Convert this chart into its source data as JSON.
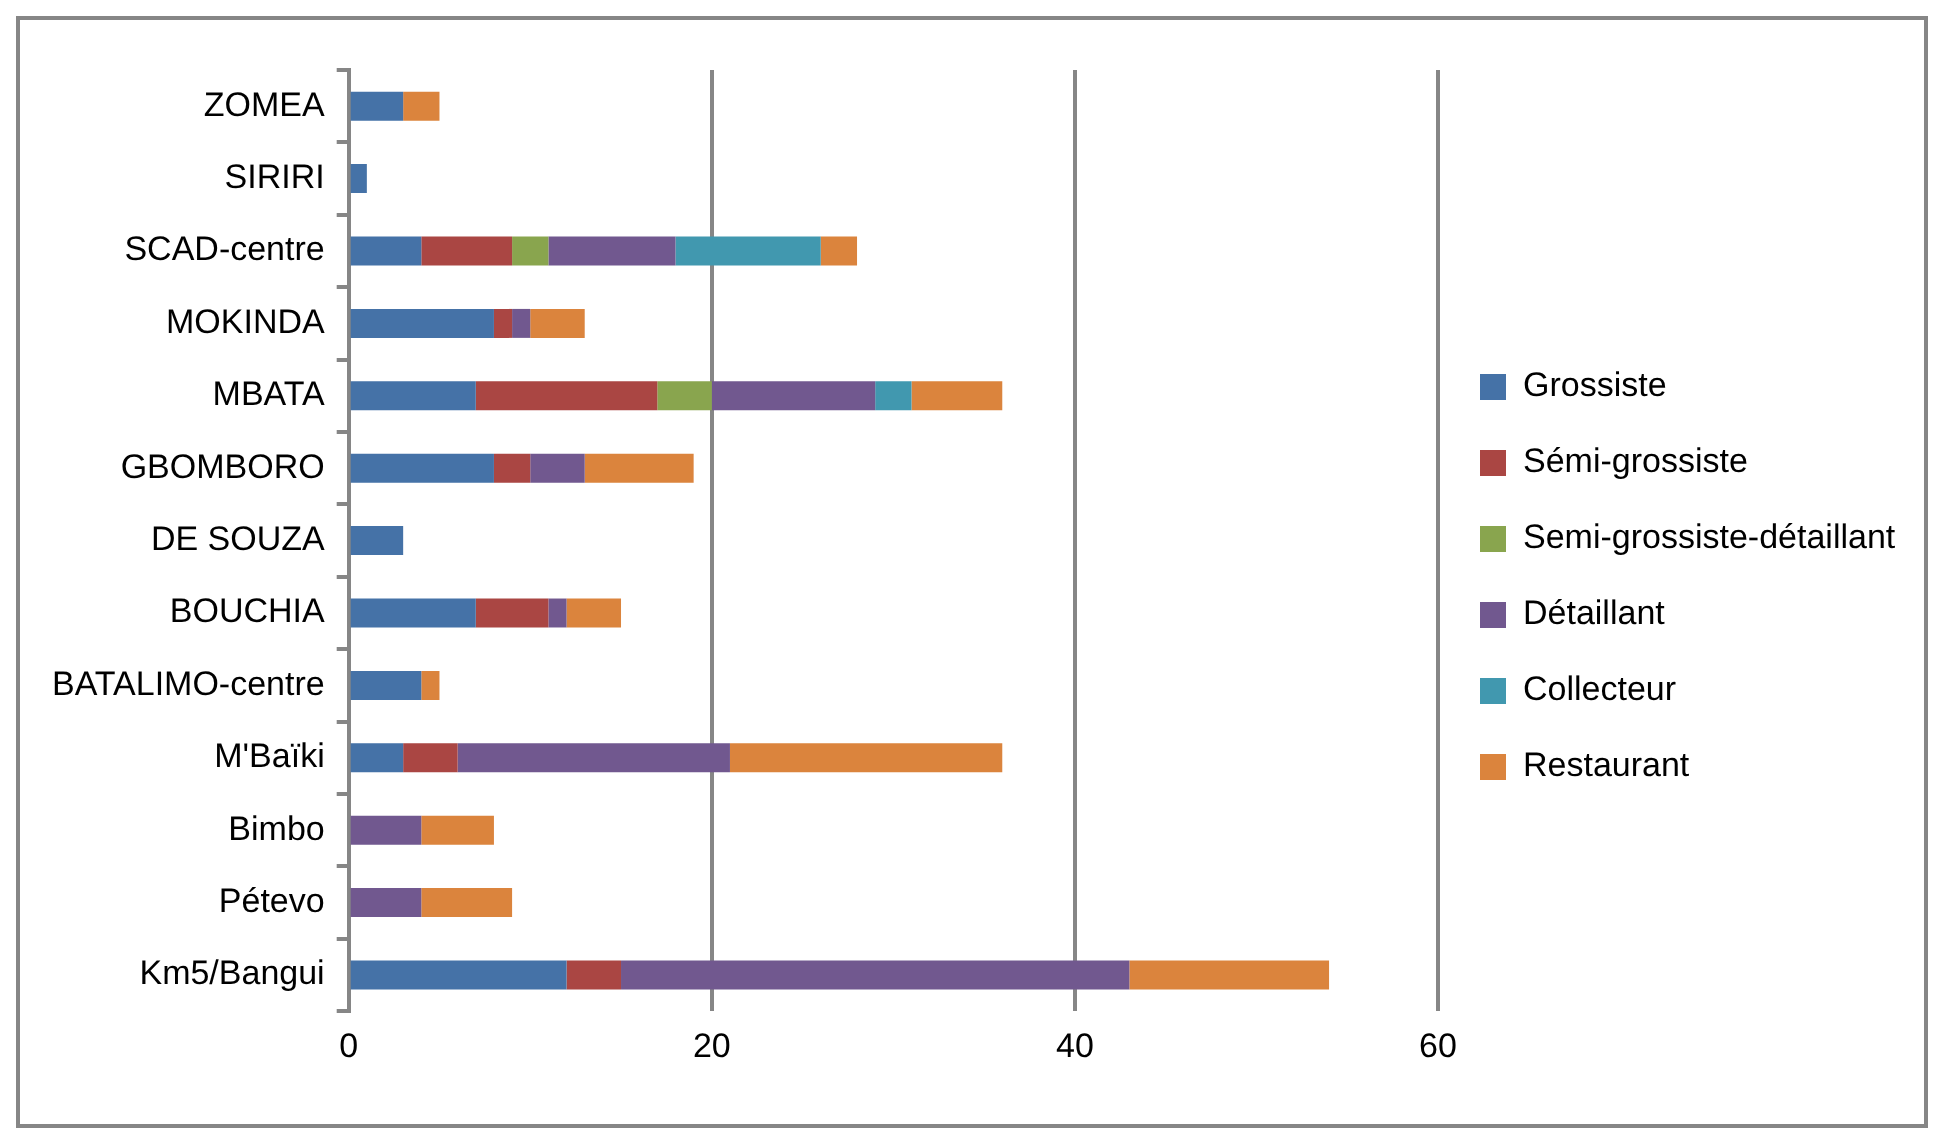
{
  "chart_data": {
    "type": "bar",
    "orientation": "horizontal",
    "stacked": true,
    "categories": [
      "ZOMEA",
      "SIRIRI",
      "SCAD-centre",
      "MOKINDA",
      "MBATA",
      "GBOMBORO",
      "DE SOUZA",
      "BOUCHIA",
      "BATALIMO-centre",
      "M'Baïki",
      "Bimbo",
      "Pétevo",
      "Km5/Bangui"
    ],
    "series": [
      {
        "name": "Grossiste",
        "color": "#4572a7",
        "values": [
          3,
          1,
          4,
          8,
          7,
          8,
          3,
          7,
          4,
          3,
          0,
          0,
          12
        ]
      },
      {
        "name": "Sémi-grossiste",
        "color": "#aa4643",
        "values": [
          0,
          0,
          5,
          1,
          10,
          2,
          0,
          4,
          0,
          3,
          0,
          0,
          3
        ]
      },
      {
        "name": "Semi-grossiste-détaillant",
        "color": "#89a54e",
        "values": [
          0,
          0,
          2,
          0,
          3,
          0,
          0,
          0,
          0,
          0,
          0,
          0,
          0
        ]
      },
      {
        "name": "Détaillant",
        "color": "#71588f",
        "values": [
          0,
          0,
          7,
          1,
          9,
          3,
          0,
          1,
          0,
          15,
          4,
          4,
          28
        ]
      },
      {
        "name": "Collecteur",
        "color": "#4198af",
        "values": [
          0,
          0,
          8,
          0,
          2,
          0,
          0,
          0,
          0,
          0,
          0,
          0,
          0
        ]
      },
      {
        "name": "Restaurant",
        "color": "#db843d",
        "values": [
          2,
          0,
          2,
          3,
          5,
          6,
          0,
          3,
          1,
          15,
          4,
          5,
          11
        ]
      }
    ],
    "xlim": [
      0,
      60
    ],
    "xticks": [
      0,
      20,
      40,
      60
    ],
    "grid": "x",
    "legend": "right"
  }
}
